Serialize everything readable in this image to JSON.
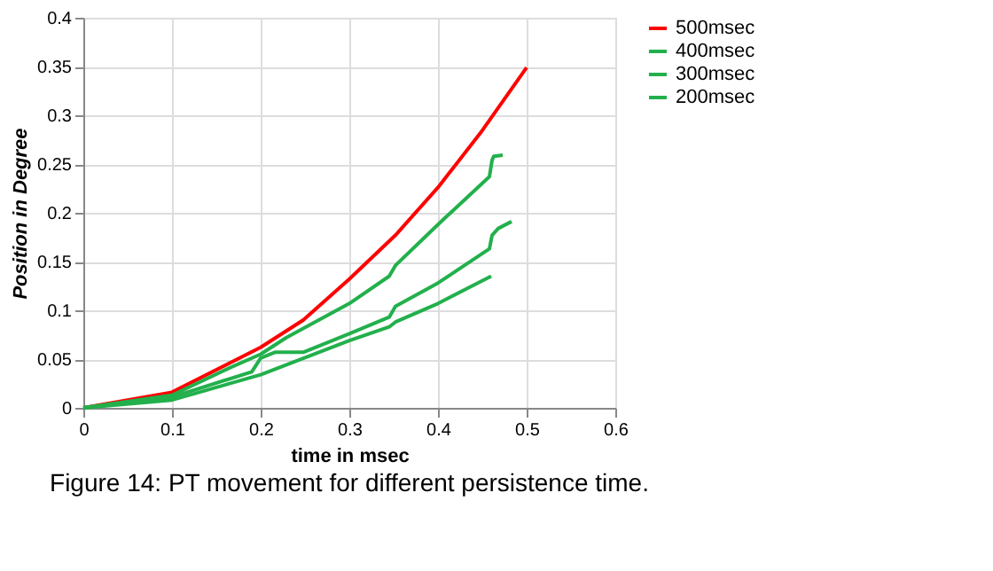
{
  "chart_data": {
    "type": "line",
    "title": "Figure 14: PT movement for different persistence time.",
    "xlabel": "time in msec",
    "ylabel": "Position    in Degree",
    "xlim": [
      0,
      0.6
    ],
    "xticks": [
      0,
      0.1,
      0.2,
      0.3,
      0.4,
      0.5,
      0.6
    ],
    "ylim": [
      0,
      0.4
    ],
    "yticks": [
      0,
      0.05,
      0.1,
      0.15,
      0.2,
      0.25,
      0.3,
      0.35,
      0.4
    ],
    "grid": true,
    "legend": "right",
    "line_style": "solid",
    "marker": "none",
    "series": [
      {
        "name": "500msec",
        "color": "#ff0000",
        "x": [
          0,
          0.1,
          0.2,
          0.248,
          0.3,
          0.352,
          0.4,
          0.448,
          0.5
        ],
        "values": [
          0,
          0.016,
          0.062,
          0.09,
          0.132,
          0.177,
          0.226,
          0.282,
          0.349
        ]
      },
      {
        "name": "400msec",
        "color": "#22b04c",
        "x": [
          0,
          0.1,
          0.165,
          0.2,
          0.229,
          0.3,
          0.345,
          0.352,
          0.4,
          0.458,
          0.461,
          0.463,
          0.473
        ],
        "values": [
          0,
          0.013,
          0.041,
          0.055,
          0.072,
          0.107,
          0.135,
          0.146,
          0.188,
          0.237,
          0.254,
          0.258,
          0.259
        ]
      },
      {
        "name": "300msec",
        "color": "#22b04c",
        "x": [
          0,
          0.1,
          0.19,
          0.2,
          0.216,
          0.248,
          0.3,
          0.345,
          0.352,
          0.4,
          0.458,
          0.461,
          0.468,
          0.483
        ],
        "values": [
          0,
          0.011,
          0.037,
          0.051,
          0.057,
          0.057,
          0.076,
          0.093,
          0.104,
          0.128,
          0.163,
          0.177,
          0.184,
          0.191
        ]
      },
      {
        "name": "200msec",
        "color": "#22b04c",
        "x": [
          0,
          0.1,
          0.2,
          0.3,
          0.345,
          0.352,
          0.4,
          0.46
        ],
        "values": [
          0,
          0.008,
          0.034,
          0.069,
          0.083,
          0.088,
          0.107,
          0.135
        ]
      }
    ]
  }
}
